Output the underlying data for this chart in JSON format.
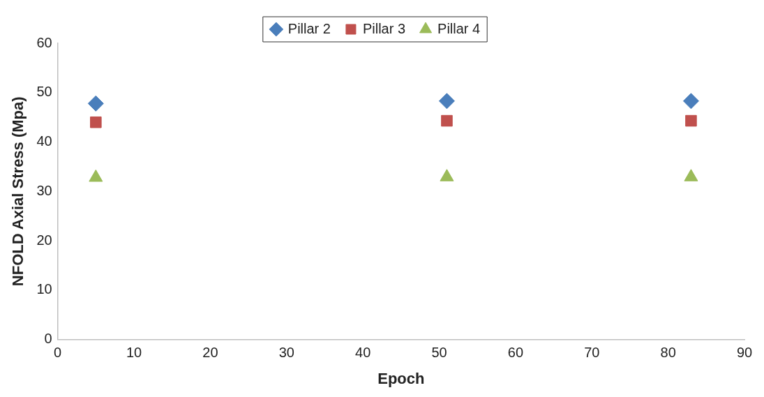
{
  "chart_data": {
    "type": "scatter",
    "xlabel": "Epoch",
    "ylabel": "NFOLD Axial Stress (Mpa)",
    "x": [
      5,
      51,
      83
    ],
    "series": [
      {
        "name": "Pillar 2",
        "color": "#4a7ebb",
        "marker": "diamond",
        "values": [
          47.8,
          48.3,
          48.3
        ]
      },
      {
        "name": "Pillar 3",
        "color": "#c0504d",
        "marker": "square",
        "values": [
          44,
          44.3,
          44.3
        ]
      },
      {
        "name": "Pillar 4",
        "color": "#9bbb59",
        "marker": "triangle",
        "values": [
          32.8,
          32.9,
          32.9
        ]
      }
    ],
    "xlim": [
      0,
      90
    ],
    "xticks": [
      0,
      10,
      20,
      30,
      40,
      50,
      60,
      70,
      80,
      90
    ],
    "ylim": [
      0,
      60
    ],
    "yticks": [
      0,
      10,
      20,
      30,
      40,
      50,
      60
    ],
    "grid": false,
    "legend": "top"
  }
}
